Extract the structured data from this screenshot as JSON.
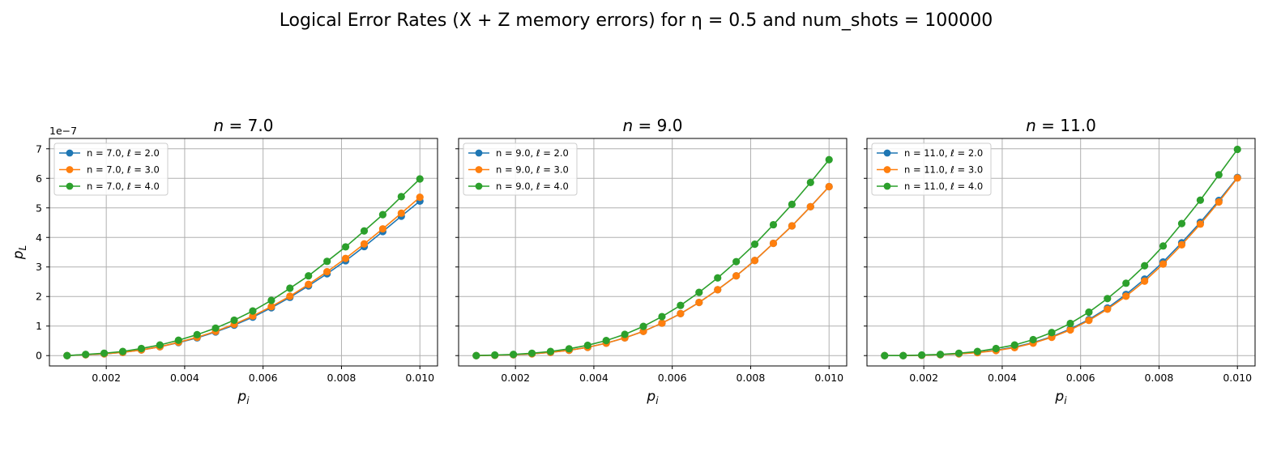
{
  "figure": {
    "title": "Logical Error Rates (X + Z memory errors) for η = 0.5 and num_shots = 100000",
    "colors": {
      "l2": "#1f77b4",
      "l3": "#ff7f0e",
      "l4": "#2ca02c",
      "grid": "#b0b0b0"
    }
  },
  "chart_data": [
    {
      "type": "line",
      "title": "n = 7.0",
      "xlabel": "p_i",
      "ylabel": "p_L",
      "y_offset_label": "1e−7",
      "xlim": [
        0.00055,
        0.01045
      ],
      "ylim": [
        -0.35,
        7.35
      ],
      "y_scale": "1e-7",
      "xticks": [
        0.002,
        0.004,
        0.006,
        0.008,
        0.01
      ],
      "xtick_labels": [
        "0.002",
        "0.004",
        "0.006",
        "0.008",
        "0.010"
      ],
      "yticks": [
        0,
        1,
        2,
        3,
        4,
        5,
        6,
        7
      ],
      "ytick_labels": [
        "0",
        "1",
        "2",
        "3",
        "4",
        "5",
        "6",
        "7"
      ],
      "grid": true,
      "legend_position": "upper-left",
      "x": [
        0.001,
        0.001474,
        0.001947,
        0.002421,
        0.002895,
        0.003368,
        0.003842,
        0.004316,
        0.004789,
        0.005263,
        0.005737,
        0.006211,
        0.006684,
        0.007158,
        0.007632,
        0.008105,
        0.008579,
        0.009053,
        0.009526,
        0.01
      ],
      "series": [
        {
          "name": "n = 7.0, ℓ = 2.0",
          "color": "#1f77b4",
          "values": [
            0.0,
            0.03,
            0.06,
            0.11,
            0.19,
            0.3,
            0.44,
            0.6,
            0.8,
            1.03,
            1.3,
            1.62,
            1.97,
            2.36,
            2.77,
            3.21,
            3.69,
            4.2,
            4.72,
            5.23
          ]
        },
        {
          "name": "n = 7.0, ℓ = 3.0",
          "color": "#ff7f0e",
          "values": [
            0.0,
            0.03,
            0.06,
            0.11,
            0.19,
            0.3,
            0.45,
            0.62,
            0.82,
            1.06,
            1.34,
            1.66,
            2.01,
            2.41,
            2.84,
            3.29,
            3.78,
            4.29,
            4.82,
            5.36
          ]
        },
        {
          "name": "n = 7.0, ℓ = 4.0",
          "color": "#2ca02c",
          "values": [
            0.0,
            0.04,
            0.08,
            0.14,
            0.24,
            0.36,
            0.52,
            0.71,
            0.93,
            1.2,
            1.51,
            1.87,
            2.28,
            2.7,
            3.19,
            3.68,
            4.22,
            4.77,
            5.38,
            5.98
          ]
        }
      ]
    },
    {
      "type": "line",
      "title": "n = 9.0",
      "xlabel": "p_i",
      "ylabel": "",
      "xlim": [
        0.00055,
        0.01045
      ],
      "ylim": [
        -0.35,
        7.35
      ],
      "xticks": [
        0.002,
        0.004,
        0.006,
        0.008,
        0.01
      ],
      "xtick_labels": [
        "0.002",
        "0.004",
        "0.006",
        "0.008",
        "0.010"
      ],
      "grid": true,
      "legend_position": "upper-left",
      "x": [
        0.001,
        0.001474,
        0.001947,
        0.002421,
        0.002895,
        0.003368,
        0.003842,
        0.004316,
        0.004789,
        0.005263,
        0.005737,
        0.006211,
        0.006684,
        0.007158,
        0.007632,
        0.008105,
        0.008579,
        0.009053,
        0.009526,
        0.01
      ],
      "series": [
        {
          "name": "n = 9.0, ℓ = 2.0",
          "color": "#1f77b4",
          "values": [
            0.0,
            0.01,
            0.03,
            0.06,
            0.11,
            0.18,
            0.28,
            0.42,
            0.6,
            0.82,
            1.1,
            1.42,
            1.8,
            2.23,
            2.7,
            3.22,
            3.8,
            4.39,
            5.04,
            5.72
          ]
        },
        {
          "name": "n = 9.0, ℓ = 3.0",
          "color": "#ff7f0e",
          "values": [
            0.0,
            0.01,
            0.03,
            0.06,
            0.11,
            0.18,
            0.28,
            0.42,
            0.6,
            0.82,
            1.1,
            1.42,
            1.8,
            2.23,
            2.7,
            3.22,
            3.8,
            4.39,
            5.04,
            5.72
          ]
        },
        {
          "name": "n = 9.0, ℓ = 4.0",
          "color": "#2ca02c",
          "values": [
            0.0,
            0.02,
            0.04,
            0.08,
            0.14,
            0.23,
            0.35,
            0.51,
            0.72,
            0.99,
            1.32,
            1.7,
            2.14,
            2.63,
            3.18,
            3.77,
            4.43,
            5.12,
            5.86,
            6.63
          ]
        }
      ]
    },
    {
      "type": "line",
      "title": "n = 11.0",
      "xlabel": "p_i",
      "ylabel": "",
      "xlim": [
        0.00055,
        0.01045
      ],
      "ylim": [
        -0.35,
        7.35
      ],
      "xticks": [
        0.002,
        0.004,
        0.006,
        0.008,
        0.01
      ],
      "xtick_labels": [
        "0.002",
        "0.004",
        "0.006",
        "0.008",
        "0.010"
      ],
      "grid": true,
      "legend_position": "upper-left",
      "x": [
        0.001,
        0.001474,
        0.001947,
        0.002421,
        0.002895,
        0.003368,
        0.003842,
        0.004316,
        0.004789,
        0.005263,
        0.005737,
        0.006211,
        0.006684,
        0.007158,
        0.007632,
        0.008105,
        0.008579,
        0.009053,
        0.009526,
        0.01
      ],
      "series": [
        {
          "name": "n = 11.0, ℓ = 2.0",
          "color": "#1f77b4",
          "values": [
            0.0,
            0.0,
            0.01,
            0.03,
            0.06,
            0.11,
            0.18,
            0.29,
            0.44,
            0.64,
            0.9,
            1.22,
            1.61,
            2.07,
            2.59,
            3.17,
            3.82,
            4.51,
            5.25,
            6.03
          ]
        },
        {
          "name": "n = 11.0, ℓ = 3.0",
          "color": "#ff7f0e",
          "values": [
            0.0,
            0.0,
            0.01,
            0.03,
            0.06,
            0.1,
            0.17,
            0.27,
            0.42,
            0.62,
            0.87,
            1.19,
            1.57,
            2.01,
            2.52,
            3.1,
            3.75,
            4.45,
            5.2,
            6.01
          ]
        },
        {
          "name": "n = 11.0, ℓ = 4.0",
          "color": "#2ca02c",
          "values": [
            0.0,
            0.0,
            0.02,
            0.04,
            0.08,
            0.14,
            0.24,
            0.36,
            0.54,
            0.78,
            1.09,
            1.47,
            1.93,
            2.45,
            3.04,
            3.71,
            4.47,
            5.26,
            6.12,
            6.98
          ]
        }
      ]
    }
  ]
}
